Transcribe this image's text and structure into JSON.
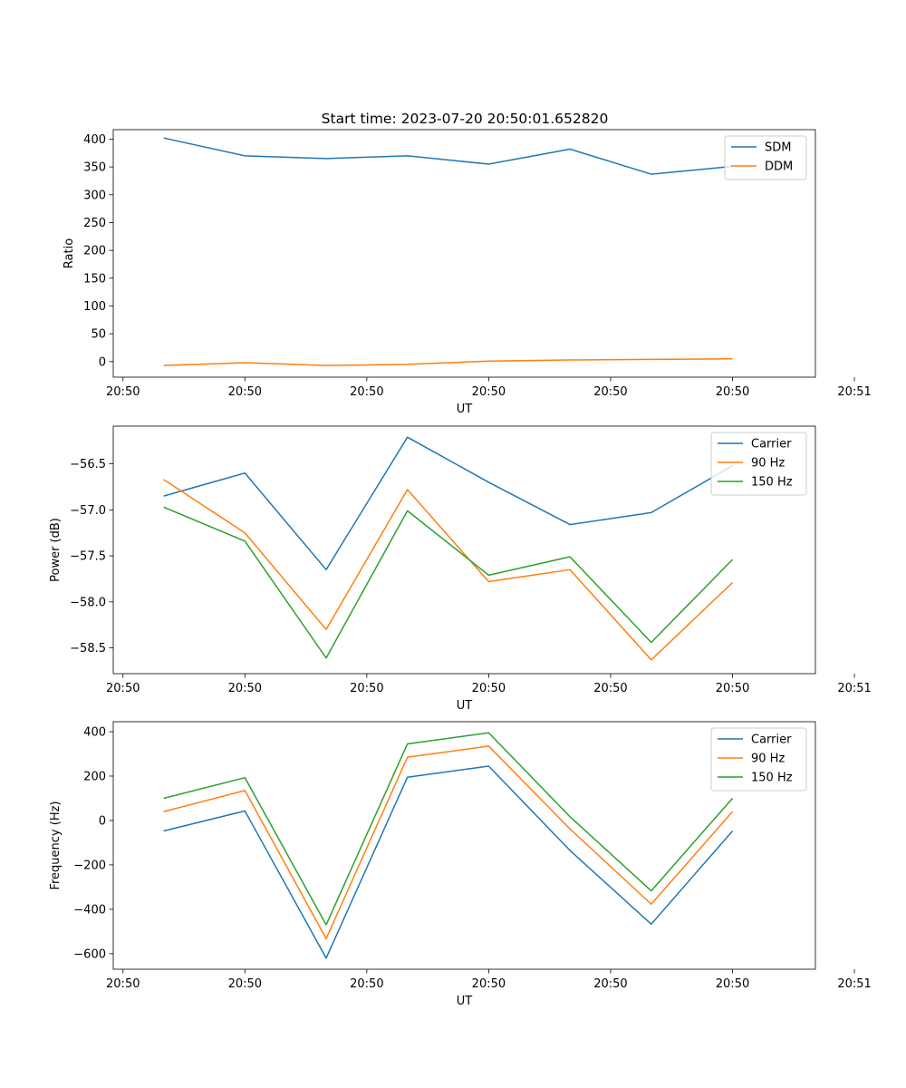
{
  "figure_title": "Start time: 2023-07-20 20:50:01.652820",
  "colors": {
    "blue": "#1f77b4",
    "orange": "#ff7f0e",
    "green": "#2ca02c"
  },
  "chart_data": [
    {
      "type": "line",
      "title": "Start time: 2023-07-20 20:50:01.652820",
      "xlabel": "UT",
      "ylabel": "Ratio",
      "x": [
        1,
        2,
        3,
        4,
        5,
        6,
        7,
        8
      ],
      "xlim": [
        0.38,
        9.02
      ],
      "x_ticks": [
        0.5,
        2,
        3.5,
        5,
        6.5,
        8,
        9.5
      ],
      "x_tick_labels": [
        "20:50",
        "20:50",
        "20:50",
        "20:50",
        "20:50",
        "20:50",
        "20:51"
      ],
      "ylim": [
        -28,
        417
      ],
      "y_ticks": [
        0,
        50,
        100,
        150,
        200,
        250,
        300,
        350,
        400
      ],
      "y_tick_labels": [
        "0",
        "50",
        "100",
        "150",
        "200",
        "250",
        "300",
        "350",
        "400"
      ],
      "legend_position": "top-right",
      "grid": false,
      "series": [
        {
          "name": "SDM",
          "color": "#1f77b4",
          "values": [
            402,
            370,
            365,
            370,
            355,
            382,
            337,
            351
          ]
        },
        {
          "name": "DDM",
          "color": "#ff7f0e",
          "values": [
            -7,
            -2,
            -7,
            -5,
            1,
            3,
            4,
            5
          ]
        }
      ]
    },
    {
      "type": "line",
      "title": "",
      "xlabel": "UT",
      "ylabel": "Power (dB)",
      "x": [
        1,
        2,
        3,
        4,
        5,
        6,
        7,
        8
      ],
      "xlim": [
        0.38,
        9.02
      ],
      "x_ticks": [
        0.5,
        2,
        3.5,
        5,
        6.5,
        8,
        9.5
      ],
      "x_tick_labels": [
        "20:50",
        "20:50",
        "20:50",
        "20:50",
        "20:50",
        "20:50",
        "20:51"
      ],
      "ylim": [
        -58.78,
        -56.09
      ],
      "y_ticks": [
        -56.5,
        -57.0,
        -57.5,
        -58.0,
        -58.5
      ],
      "y_tick_labels": [
        "−56.5",
        "−57.0",
        "−57.5",
        "−58.0",
        "−58.5"
      ],
      "legend_position": "top-right",
      "grid": false,
      "series": [
        {
          "name": "Carrier",
          "color": "#1f77b4",
          "values": [
            -56.85,
            -56.6,
            -57.65,
            -56.21,
            -56.7,
            -57.16,
            -57.03,
            -56.52
          ]
        },
        {
          "name": "90 Hz",
          "color": "#ff7f0e",
          "values": [
            -56.67,
            -57.25,
            -58.3,
            -56.78,
            -57.78,
            -57.65,
            -58.63,
            -57.79
          ]
        },
        {
          "name": "150 Hz",
          "color": "#2ca02c",
          "values": [
            -56.97,
            -57.34,
            -58.61,
            -57.01,
            -57.71,
            -57.51,
            -58.44,
            -57.54
          ]
        }
      ]
    },
    {
      "type": "line",
      "title": "",
      "xlabel": "UT",
      "ylabel": "Frequency (Hz)",
      "x": [
        1,
        2,
        3,
        4,
        5,
        6,
        7,
        8
      ],
      "xlim": [
        0.38,
        9.02
      ],
      "x_ticks": [
        0.5,
        2,
        3.5,
        5,
        6.5,
        8,
        9.5
      ],
      "x_tick_labels": [
        "20:50",
        "20:50",
        "20:50",
        "20:50",
        "20:50",
        "20:50",
        "20:51"
      ],
      "ylim": [
        -670,
        445
      ],
      "y_ticks": [
        400,
        200,
        0,
        -200,
        -400,
        -600
      ],
      "y_tick_labels": [
        "400",
        "200",
        "0",
        "−200",
        "−400",
        "−600"
      ],
      "legend_position": "top-right",
      "grid": false,
      "series": [
        {
          "name": "Carrier",
          "color": "#1f77b4",
          "values": [
            -47,
            43,
            -620,
            195,
            245,
            -135,
            -467,
            -47
          ]
        },
        {
          "name": "90 Hz",
          "color": "#ff7f0e",
          "values": [
            40,
            135,
            -532,
            285,
            335,
            -38,
            -377,
            40
          ]
        },
        {
          "name": "150 Hz",
          "color": "#2ca02c",
          "values": [
            100,
            193,
            -470,
            345,
            395,
            17,
            -317,
            100
          ]
        }
      ]
    }
  ]
}
